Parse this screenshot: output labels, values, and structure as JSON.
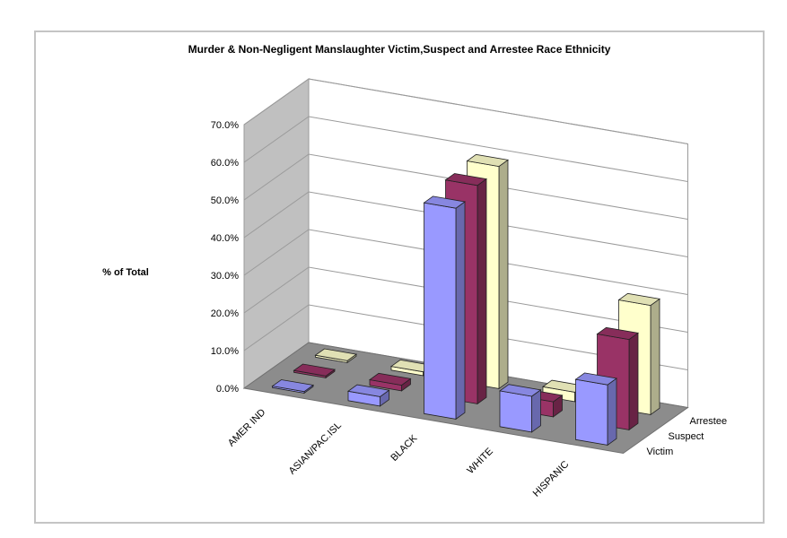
{
  "chart_data": {
    "type": "bar",
    "title": "Murder & Non-Negligent Manslaughter Victim,Suspect and Arrestee Race Ethnicity",
    "ylabel": "% of Total",
    "xlabel": "",
    "categories": [
      "AMER IND",
      "ASIAN/PAC.ISL",
      "BLACK",
      "WHITE",
      "HISPANIC"
    ],
    "series": [
      {
        "name": "Victim",
        "values": [
          0.4,
          2.5,
          56.0,
          9.5,
          16.0
        ],
        "color": "#9999ff"
      },
      {
        "name": "Suspect",
        "values": [
          0.5,
          1.5,
          58.0,
          4.0,
          24.0
        ],
        "color": "#993366"
      },
      {
        "name": "Arrestee",
        "values": [
          0.5,
          1.0,
          59.0,
          2.5,
          29.0
        ],
        "color": "#ffffcc"
      }
    ],
    "yticks": [
      "0.0%",
      "10.0%",
      "20.0%",
      "30.0%",
      "40.0%",
      "50.0%",
      "60.0%",
      "70.0%"
    ],
    "ylim": [
      0,
      70
    ],
    "grid": true,
    "legend": "depth-axis"
  }
}
